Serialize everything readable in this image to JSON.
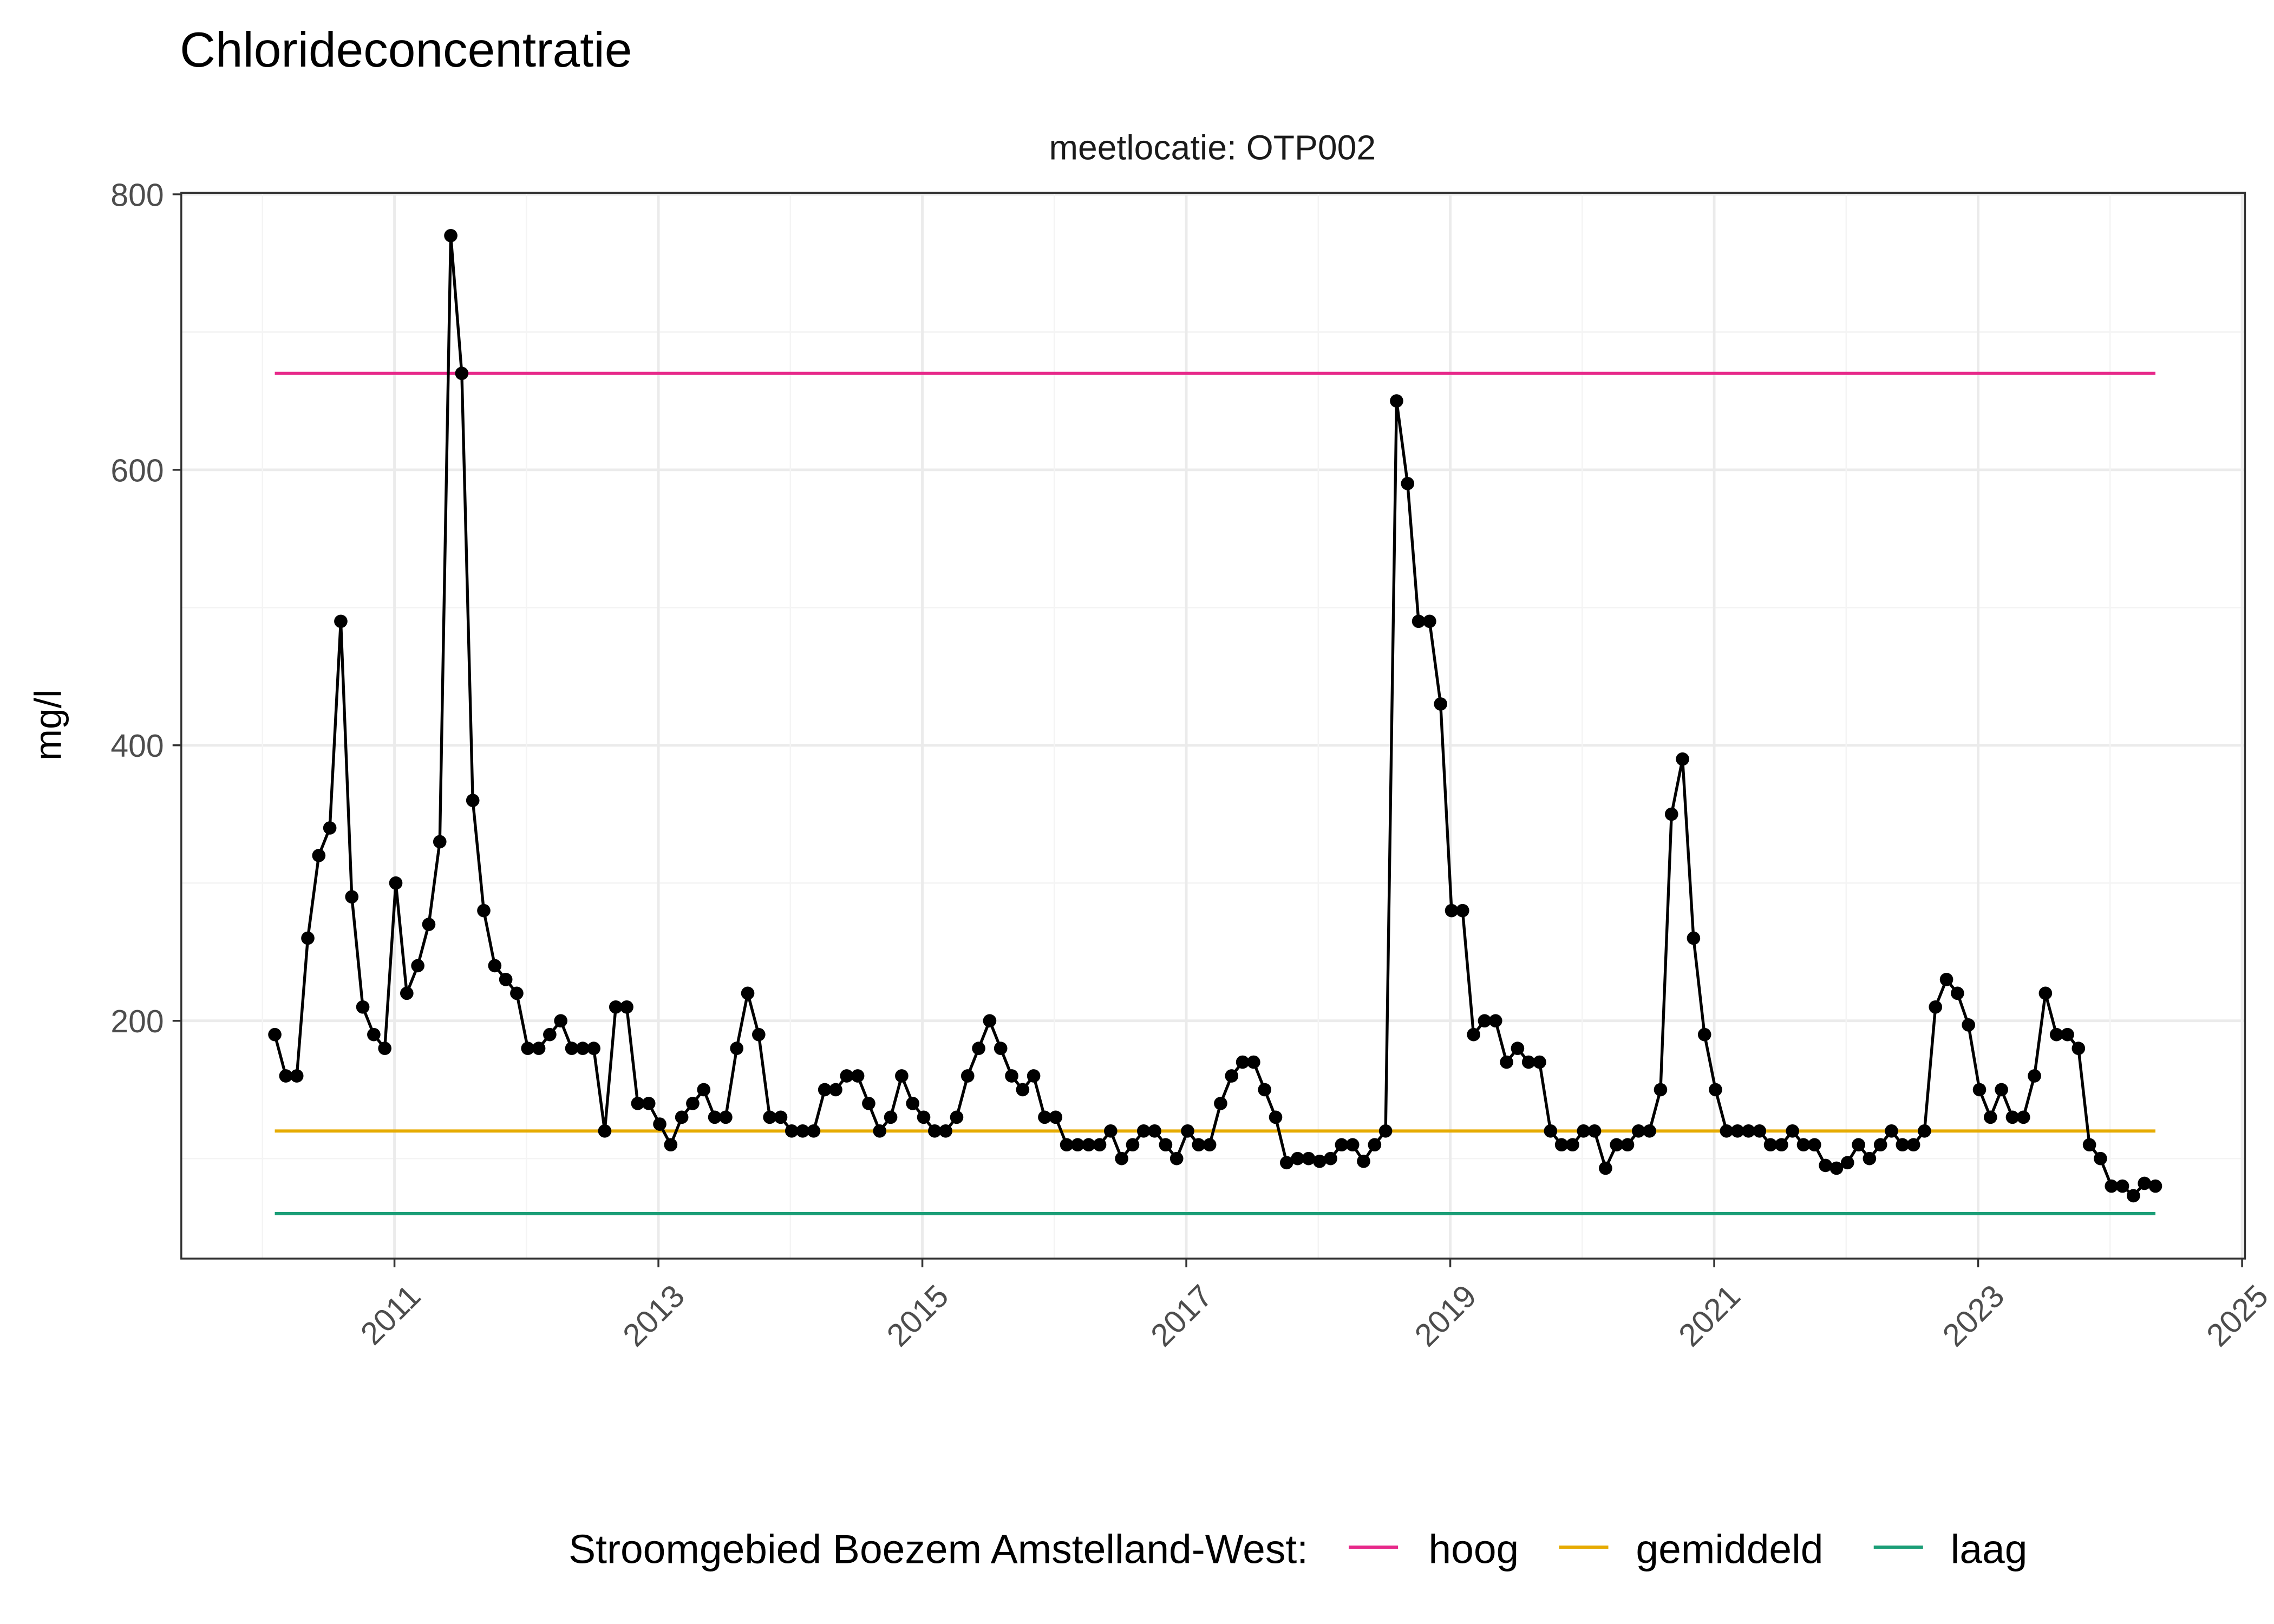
{
  "chart_data": {
    "type": "line",
    "title": "Chlorideconcentratie",
    "facet_label": "meetlocatie: OTP002",
    "xlabel": "",
    "ylabel": "mg/l",
    "xlim": [
      "2009-05",
      "2025-01"
    ],
    "ylim": [
      27,
      800
    ],
    "x_ticks": [
      "2011",
      "2013",
      "2015",
      "2017",
      "2019",
      "2021",
      "2023",
      "2025"
    ],
    "y_ticks": [
      200,
      400,
      600,
      800
    ],
    "grid": true,
    "series": [
      {
        "color": "#000000",
        "markers": true,
        "monthly_values": {
          "2010": {
            "start_month": 2,
            "values": [
              190,
              160,
              160,
              260,
              320,
              340,
              490,
              290,
              210,
              190,
              180
            ]
          },
          "2011": {
            "start_month": 1,
            "values": [
              300,
              220,
              240,
              270,
              330,
              770,
              670,
              360,
              280,
              240,
              230,
              220
            ]
          },
          "2012": {
            "start_month": 1,
            "values": [
              180,
              180,
              190,
              200,
              180,
              180,
              180,
              120,
              210,
              210,
              140,
              140
            ]
          },
          "2013": {
            "start_month": 1,
            "values": [
              125,
              110,
              130,
              140,
              150,
              130,
              130,
              180,
              220,
              190,
              130,
              130
            ]
          },
          "2014": {
            "start_month": 1,
            "values": [
              120,
              120,
              120,
              150,
              150,
              160,
              160,
              140,
              120,
              130,
              160,
              140
            ]
          },
          "2015": {
            "start_month": 1,
            "values": [
              130,
              120,
              120,
              130,
              160,
              180,
              200,
              180,
              160,
              150,
              160,
              130
            ]
          },
          "2016": {
            "start_month": 1,
            "values": [
              130,
              110,
              110,
              110,
              110,
              120,
              100,
              110,
              120,
              120,
              110,
              100
            ]
          },
          "2017": {
            "start_month": 1,
            "values": [
              120,
              110,
              110,
              140,
              160,
              170,
              170,
              150,
              130,
              97,
              100,
              100
            ]
          },
          "2018": {
            "start_month": 1,
            "values": [
              98,
              100,
              110,
              110,
              98,
              110,
              120,
              650,
              590,
              490,
              490,
              430
            ]
          },
          "2019": {
            "start_month": 1,
            "values": [
              280,
              280,
              190,
              200,
              200,
              170,
              180,
              170,
              170,
              120,
              110,
              110
            ]
          },
          "2020": {
            "start_month": 1,
            "values": [
              120,
              120,
              93,
              110,
              110,
              120,
              120,
              150,
              350,
              390,
              260,
              190
            ]
          },
          "2021": {
            "start_month": 1,
            "values": [
              150,
              120,
              120,
              120,
              120,
              110,
              110,
              120,
              110,
              110,
              95,
              93
            ]
          },
          "2022": {
            "start_month": 1,
            "values": [
              97,
              110,
              100,
              110,
              120,
              110,
              110,
              120,
              210,
              230,
              220,
              197
            ]
          },
          "2023": {
            "start_month": 1,
            "values": [
              150,
              130,
              150,
              130,
              130,
              160,
              220,
              190,
              190,
              180,
              110,
              100
            ]
          },
          "2024": {
            "start_month": 1,
            "values": [
              80,
              80,
              73,
              82,
              80
            ]
          }
        }
      }
    ],
    "reference_lines": [
      {
        "name": "hoog",
        "value": 670,
        "color": "#E7298A"
      },
      {
        "name": "gemiddeld",
        "value": 120,
        "color": "#E6AB02"
      },
      {
        "name": "laag",
        "value": 60,
        "color": "#1B9E77"
      }
    ],
    "legend": {
      "title": "Stroomgebied Boezem Amstelland-West:",
      "placement": "bottom"
    }
  }
}
